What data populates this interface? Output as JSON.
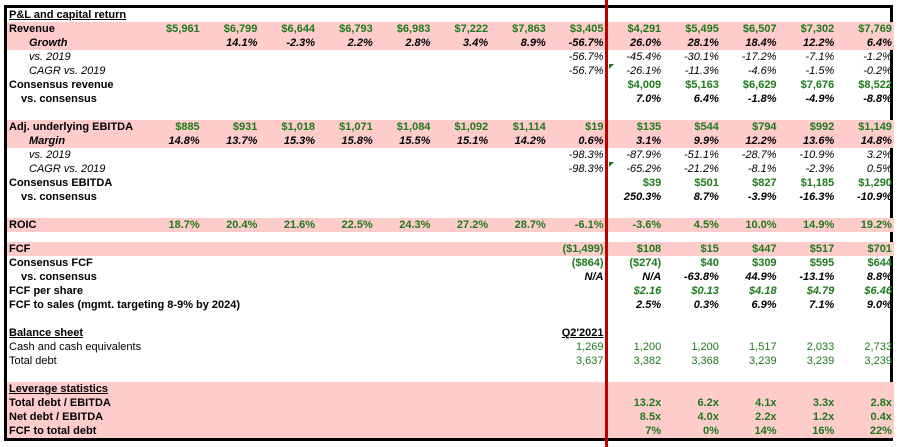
{
  "colors": {
    "accent_pink": "#ffcccc",
    "value_green": "#1d7a1d",
    "divider_red": "#c00000"
  },
  "rows": [
    {
      "label": "P&L and capital return",
      "kind": "header",
      "cells": [
        "",
        "",
        "",
        "",
        "",
        "",
        "",
        "",
        "",
        "",
        "",
        "",
        ""
      ]
    },
    {
      "label": "Revenue",
      "kind": "green-bold",
      "pink": true,
      "cells": [
        "$5,961",
        "$6,799",
        "$6,644",
        "$6,793",
        "$6,983",
        "$7,222",
        "$7,863",
        "$3,405",
        "$4,291",
        "$5,495",
        "$6,507",
        "$7,302",
        "$7,769"
      ]
    },
    {
      "label": "Growth",
      "kind": "bold-italic",
      "pink": true,
      "indent": 1,
      "labelItalic": true,
      "cells": [
        "",
        "14.1%",
        "-2.3%",
        "2.2%",
        "2.8%",
        "3.4%",
        "8.9%",
        "-56.7%",
        "26.0%",
        "28.1%",
        "18.4%",
        "12.2%",
        "6.4%"
      ]
    },
    {
      "label": "vs. 2019",
      "kind": "italic",
      "indent": 1,
      "labelPlainItalic": true,
      "cells": [
        "",
        "",
        "",
        "",
        "",
        "",
        "",
        "-56.7%",
        "-45.4%",
        "-30.1%",
        "-17.2%",
        "-7.1%",
        "-1.2%"
      ]
    },
    {
      "label": "CAGR vs. 2019",
      "kind": "italic",
      "indent": 1,
      "labelPlainItalic": true,
      "marker": true,
      "cells": [
        "",
        "",
        "",
        "",
        "",
        "",
        "",
        "-56.7%",
        "-26.1%",
        "-11.3%",
        "-4.6%",
        "-1.5%",
        "-0.2%"
      ]
    },
    {
      "label": "Consensus revenue",
      "kind": "green-bold",
      "cells": [
        "",
        "",
        "",
        "",
        "",
        "",
        "",
        "",
        "$4,009",
        "$5,163",
        "$6,629",
        "$7,676",
        "$8,522"
      ]
    },
    {
      "label": "vs. consensus",
      "kind": "bold-italic",
      "indent": 2,
      "cells": [
        "",
        "",
        "",
        "",
        "",
        "",
        "",
        "",
        "7.0%",
        "6.4%",
        "-1.8%",
        "-4.9%",
        "-8.8%"
      ]
    },
    {
      "label": "",
      "kind": "blank",
      "cells": [
        "",
        "",
        "",
        "",
        "",
        "",
        "",
        "",
        "",
        "",
        "",
        "",
        ""
      ]
    },
    {
      "label": "Adj. underlying EBITDA",
      "kind": "green-bold",
      "pink": true,
      "cells": [
        "$885",
        "$931",
        "$1,018",
        "$1,071",
        "$1,084",
        "$1,092",
        "$1,114",
        "$19",
        "$135",
        "$544",
        "$794",
        "$992",
        "$1,149"
      ]
    },
    {
      "label": "Margin",
      "kind": "bold-italic",
      "pink": true,
      "indent": 1,
      "labelItalic": true,
      "cells": [
        "14.8%",
        "13.7%",
        "15.3%",
        "15.8%",
        "15.5%",
        "15.1%",
        "14.2%",
        "0.6%",
        "3.1%",
        "9.9%",
        "12.2%",
        "13.6%",
        "14.8%"
      ]
    },
    {
      "label": "vs. 2019",
      "kind": "italic",
      "indent": 1,
      "labelPlainItalic": true,
      "cells": [
        "",
        "",
        "",
        "",
        "",
        "",
        "",
        "-98.3%",
        "-87.9%",
        "-51.1%",
        "-28.7%",
        "-10.9%",
        "3.2%"
      ]
    },
    {
      "label": "CAGR vs. 2019",
      "kind": "italic",
      "indent": 1,
      "labelPlainItalic": true,
      "marker": true,
      "cells": [
        "",
        "",
        "",
        "",
        "",
        "",
        "",
        "-98.3%",
        "-65.2%",
        "-21.2%",
        "-8.1%",
        "-2.3%",
        "0.5%"
      ]
    },
    {
      "label": "Consensus EBITDA",
      "kind": "green-bold",
      "cells": [
        "",
        "",
        "",
        "",
        "",
        "",
        "",
        "",
        "$39",
        "$501",
        "$827",
        "$1,185",
        "$1,290"
      ]
    },
    {
      "label": "vs. consensus",
      "kind": "bold-italic",
      "indent": 2,
      "cells": [
        "",
        "",
        "",
        "",
        "",
        "",
        "",
        "",
        "250.3%",
        "8.7%",
        "-3.9%",
        "-16.3%",
        "-10.9%"
      ]
    },
    {
      "label": "",
      "kind": "blank",
      "cells": [
        "",
        "",
        "",
        "",
        "",
        "",
        "",
        "",
        "",
        "",
        "",
        "",
        ""
      ]
    },
    {
      "label": "ROIC",
      "kind": "green-bold",
      "pink": true,
      "cells": [
        "18.7%",
        "20.4%",
        "21.6%",
        "22.5%",
        "24.3%",
        "27.2%",
        "28.7%",
        "-6.1%",
        "-3.6%",
        "4.5%",
        "10.0%",
        "14.9%",
        "19.2%"
      ]
    },
    {
      "label": "",
      "kind": "blank",
      "short": true,
      "cells": [
        "",
        "",
        "",
        "",
        "",
        "",
        "",
        "",
        "",
        "",
        "",
        "",
        ""
      ]
    },
    {
      "label": "FCF",
      "kind": "green-bold",
      "pink": true,
      "cells": [
        "",
        "",
        "",
        "",
        "",
        "",
        "",
        "($1,499)",
        "$108",
        "$15",
        "$447",
        "$517",
        "$701"
      ]
    },
    {
      "label": "Consensus FCF",
      "kind": "green-bold",
      "cells": [
        "",
        "",
        "",
        "",
        "",
        "",
        "",
        "($864)",
        "($274)",
        "$40",
        "$309",
        "$595",
        "$644"
      ]
    },
    {
      "label": "vs. consensus",
      "kind": "bold-italic",
      "indent": 2,
      "cells": [
        "",
        "",
        "",
        "",
        "",
        "",
        "",
        "N/A",
        "N/A",
        "-63.8%",
        "44.9%",
        "-13.1%",
        "8.8%"
      ]
    },
    {
      "label": "FCF per share",
      "kind": "green-bold-italic",
      "cells": [
        "",
        "",
        "",
        "",
        "",
        "",
        "",
        "",
        "$2.16",
        "$0.13",
        "$4.18",
        "$4.79",
        "$6.46"
      ]
    },
    {
      "label": "FCF to sales (mgmt. targeting 8-9% by 2024)",
      "kind": "bold-italic",
      "cells": [
        "",
        "",
        "",
        "",
        "",
        "",
        "",
        "",
        "2.5%",
        "0.3%",
        "6.9%",
        "7.1%",
        "9.0%"
      ]
    },
    {
      "label": "",
      "kind": "blank",
      "cells": [
        "",
        "",
        "",
        "",
        "",
        "",
        "",
        "",
        "",
        "",
        "",
        "",
        ""
      ]
    },
    {
      "label": "Balance sheet",
      "kind": "header",
      "cells": [
        "",
        "",
        "",
        "",
        "",
        "",
        "",
        "Q2'2021",
        "",
        "",
        "",
        "",
        ""
      ]
    },
    {
      "label": "Cash and cash equivalents",
      "kind": "green",
      "labelPlain": true,
      "cells": [
        "",
        "",
        "",
        "",
        "",
        "",
        "",
        "1,269",
        "1,200",
        "1,200",
        "1,517",
        "2,033",
        "2,733"
      ]
    },
    {
      "label": "Total debt",
      "kind": "green",
      "labelPlain": true,
      "cells": [
        "",
        "",
        "",
        "",
        "",
        "",
        "",
        "3,637",
        "3,382",
        "3,368",
        "3,239",
        "3,239",
        "3,239"
      ]
    },
    {
      "label": "",
      "kind": "blank",
      "cells": [
        "",
        "",
        "",
        "",
        "",
        "",
        "",
        "",
        "",
        "",
        "",
        "",
        ""
      ]
    },
    {
      "label": "Leverage statistics",
      "kind": "header",
      "pink": true,
      "cells": [
        "",
        "",
        "",
        "",
        "",
        "",
        "",
        "",
        "",
        "",
        "",
        "",
        ""
      ]
    },
    {
      "label": "Total debt / EBITDA",
      "kind": "green-bold",
      "pink": true,
      "cells": [
        "",
        "",
        "",
        "",
        "",
        "",
        "",
        "",
        "13.2x",
        "6.2x",
        "4.1x",
        "3.3x",
        "2.8x"
      ]
    },
    {
      "label": "Net debt / EBITDA",
      "kind": "green-bold",
      "pink": true,
      "cells": [
        "",
        "",
        "",
        "",
        "",
        "",
        "",
        "",
        "8.5x",
        "4.0x",
        "2.2x",
        "1.2x",
        "0.4x"
      ]
    },
    {
      "label": "FCF to total debt",
      "kind": "green-bold",
      "pink": true,
      "cells": [
        "",
        "",
        "",
        "",
        "",
        "",
        "",
        "",
        "7%",
        "0%",
        "14%",
        "16%",
        "22%"
      ]
    }
  ]
}
